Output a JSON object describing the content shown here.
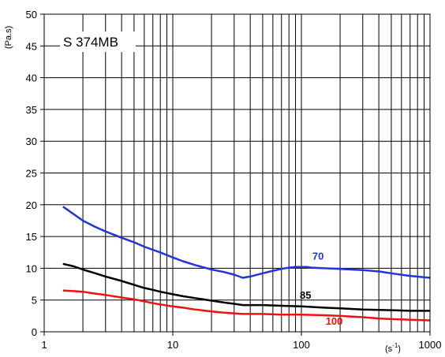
{
  "chart_data": {
    "type": "line",
    "title": "S 374MB",
    "ylabel": "(Pa.s)",
    "xlabel": "(s-1)",
    "xlabel_base": "(s",
    "xlabel_sup": "-1",
    "xlabel_close": ")",
    "x_scale": "log",
    "xlim": [
      1,
      1000
    ],
    "ylim": [
      0,
      50
    ],
    "x_ticks": [
      "1",
      "10",
      "100",
      "1000"
    ],
    "y_ticks": [
      "0",
      "5",
      "10",
      "15",
      "20",
      "25",
      "30",
      "35",
      "40",
      "45",
      "50"
    ],
    "grid": true,
    "series": [
      {
        "name": "70",
        "color": "#2233dd",
        "x": [
          1.4,
          1.7,
          2,
          2.5,
          3,
          4,
          5,
          6,
          7,
          8,
          10,
          12,
          15,
          20,
          25,
          30,
          35,
          40,
          50,
          60,
          70,
          80,
          90,
          100,
          110,
          120,
          150,
          200,
          300,
          400,
          500,
          700,
          1000
        ],
        "y": [
          19.7,
          18.5,
          17.5,
          16.5,
          15.8,
          14.8,
          14.1,
          13.4,
          12.9,
          12.5,
          11.7,
          11.1,
          10.5,
          9.8,
          9.4,
          9.0,
          8.5,
          8.7,
          9.2,
          9.6,
          9.9,
          10.1,
          10.2,
          10.2,
          10.2,
          10.1,
          10.0,
          9.9,
          9.7,
          9.5,
          9.2,
          8.8,
          8.5
        ]
      },
      {
        "name": "85",
        "color": "#000000",
        "x": [
          1.4,
          1.7,
          2,
          2.5,
          3,
          4,
          5,
          6,
          7,
          8,
          10,
          12,
          15,
          20,
          25,
          30,
          35,
          40,
          50,
          70,
          100,
          150,
          200,
          300,
          500,
          700,
          1000
        ],
        "y": [
          10.7,
          10.3,
          9.8,
          9.2,
          8.7,
          8.0,
          7.4,
          6.9,
          6.6,
          6.3,
          5.9,
          5.6,
          5.3,
          4.9,
          4.6,
          4.4,
          4.2,
          4.2,
          4.2,
          4.1,
          4.0,
          3.8,
          3.7,
          3.5,
          3.4,
          3.3,
          3.3
        ]
      },
      {
        "name": "100",
        "color": "#ee1111",
        "x": [
          1.4,
          1.7,
          2,
          2.5,
          3,
          4,
          5,
          6,
          7,
          8,
          10,
          12,
          15,
          20,
          25,
          30,
          35,
          40,
          50,
          70,
          100,
          150,
          200,
          300,
          400,
          500,
          700,
          1000
        ],
        "y": [
          6.5,
          6.4,
          6.3,
          6.0,
          5.8,
          5.4,
          5.1,
          4.8,
          4.5,
          4.3,
          4.0,
          3.8,
          3.5,
          3.2,
          3.0,
          2.9,
          2.8,
          2.8,
          2.8,
          2.7,
          2.7,
          2.6,
          2.5,
          2.3,
          2.1,
          2.0,
          1.9,
          1.8
        ]
      }
    ]
  }
}
